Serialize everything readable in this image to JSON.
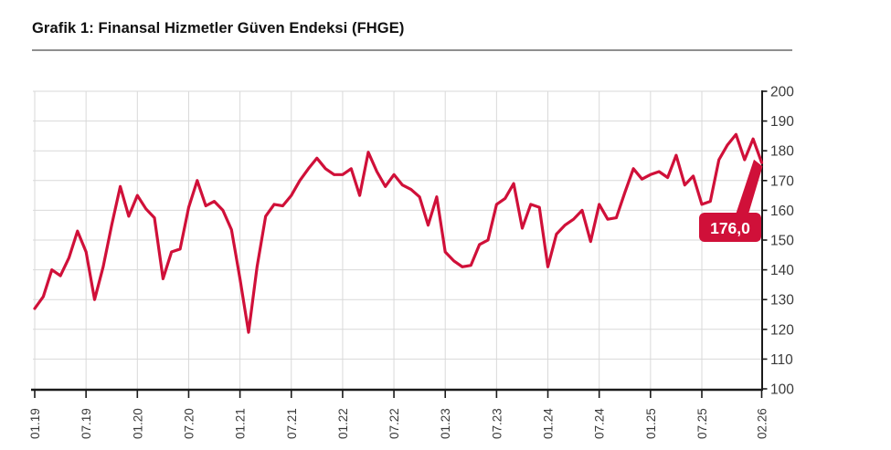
{
  "title": "Grafik 1: Finansal Hizmetler Güven Endeksi (FHGE)",
  "colors": {
    "line": "#d01039",
    "grid": "#d9d9d9",
    "axis": "#1a1a1a",
    "tick_label": "#3a3a3a",
    "annotation_bg": "#d01039",
    "annotation_text": "#ffffff",
    "divider": "#8f8f8f"
  },
  "chart_data": {
    "type": "line",
    "series_name": "FHGE",
    "months": [
      "01.19",
      "02.19",
      "03.19",
      "04.19",
      "05.19",
      "06.19",
      "07.19",
      "08.19",
      "09.19",
      "10.19",
      "11.19",
      "12.19",
      "01.20",
      "02.20",
      "03.20",
      "04.20",
      "05.20",
      "06.20",
      "07.20",
      "08.20",
      "09.20",
      "10.20",
      "11.20",
      "12.20",
      "01.21",
      "02.21",
      "03.21",
      "04.21",
      "05.21",
      "06.21",
      "07.21",
      "08.21",
      "09.21",
      "10.21",
      "11.21",
      "12.21",
      "01.22",
      "02.22",
      "03.22",
      "04.22",
      "05.22",
      "06.22",
      "07.22",
      "08.22",
      "09.22",
      "10.22",
      "11.22",
      "12.22",
      "01.23",
      "02.23",
      "03.23",
      "04.23",
      "05.23",
      "06.23",
      "07.23",
      "08.23",
      "09.23",
      "10.23",
      "11.23",
      "12.23",
      "01.24",
      "02.24",
      "03.24",
      "04.24",
      "05.24",
      "06.24",
      "07.24",
      "08.24",
      "09.24",
      "10.24",
      "11.24",
      "12.24",
      "01.25",
      "02.25",
      "03.25",
      "04.25",
      "05.25",
      "06.25",
      "07.25",
      "08.25",
      "09.25",
      "10.25",
      "11.25",
      "12.25",
      "01.26",
      "02.26"
    ],
    "values": [
      127,
      131,
      140,
      138,
      144,
      153,
      146,
      130,
      141,
      155,
      168,
      158,
      165,
      160.5,
      157.5,
      137,
      146,
      147,
      161,
      170,
      161.5,
      163,
      160,
      153.5,
      137,
      119,
      141,
      158,
      162,
      161.5,
      165,
      170,
      174,
      177.5,
      174,
      172,
      172,
      174,
      165,
      179.5,
      173,
      168,
      172,
      168.5,
      167,
      164.5,
      155,
      164.5,
      146,
      143,
      141,
      141.5,
      148.5,
      150,
      162,
      164,
      169,
      154,
      162,
      161,
      141,
      152,
      155,
      157,
      160,
      149.5,
      162,
      157,
      157.5,
      166,
      174,
      170.5,
      172,
      173,
      171,
      178.5,
      168.5,
      171.5,
      162,
      163,
      177,
      182,
      185.5,
      177,
      184,
      176
    ],
    "x_tick_labels": [
      "01.19",
      "07.19",
      "01.20",
      "07.20",
      "01.21",
      "07.21",
      "01.22",
      "07.22",
      "01.23",
      "07.23",
      "01.24",
      "07.24",
      "01.25",
      "07.25",
      "02.26"
    ],
    "x_tick_indices": [
      0,
      6,
      12,
      18,
      24,
      30,
      36,
      42,
      48,
      54,
      60,
      66,
      72,
      78,
      85
    ],
    "y_ticks": [
      100,
      110,
      120,
      130,
      140,
      150,
      160,
      170,
      180,
      190,
      200
    ],
    "ylim": [
      100,
      200
    ],
    "grid": true,
    "y_axis_side": "right",
    "annotation": {
      "label": "176,0",
      "value": 176.0,
      "month": "02.26"
    }
  }
}
